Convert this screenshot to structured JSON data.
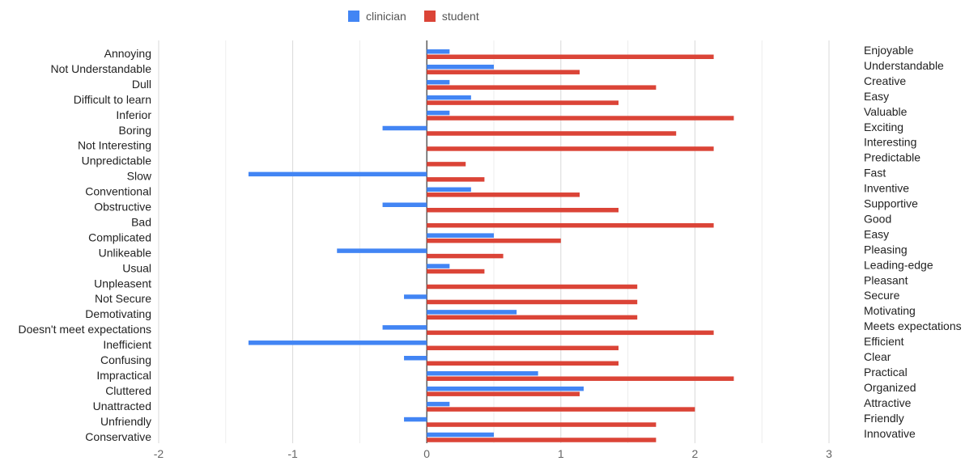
{
  "chart_data": {
    "type": "bar",
    "orientation": "horizontal",
    "grid": true,
    "legend_position": "top-center",
    "xlim": [
      -2,
      3
    ],
    "xticks": [
      "-2",
      "-1",
      "0",
      "1",
      "2",
      "3"
    ],
    "categories_left": [
      "Annoying",
      "Not Understandable",
      "Dull",
      "Difficult to learn",
      "Inferior",
      "Boring",
      "Not Interesting",
      "Unpredictable",
      "Slow",
      "Conventional",
      "Obstructive",
      "Bad",
      "Complicated",
      "Unlikeable",
      "Usual",
      "Unpleasent",
      "Not Secure",
      "Demotivating",
      "Doesn't meet expectations",
      "Inefficient",
      "Confusing",
      "Impractical",
      "Cluttered",
      "Unattracted",
      "Unfriendly",
      "Conservative"
    ],
    "categories_right": [
      "Enjoyable",
      "Understandable",
      "Creative",
      "Easy",
      "Valuable",
      "Exciting",
      "Interesting",
      "Predictable",
      "Fast",
      "Inventive",
      "Supportive",
      "Good",
      "Easy",
      "Pleasing",
      "Leading-edge",
      "Pleasant",
      "Secure",
      "Motivating",
      "Meets expectations",
      "Efficient",
      "Clear",
      "Practical",
      "Organized",
      "Attractive",
      "Friendly",
      "Innovative"
    ],
    "series": [
      {
        "name": "clinician",
        "color": "#4285f4",
        "values": [
          0.17,
          0.5,
          0.17,
          0.33,
          0.17,
          -0.33,
          0,
          0,
          -1.33,
          0.33,
          -0.33,
          0,
          0.5,
          -0.67,
          0.17,
          0,
          -0.17,
          0.67,
          -0.33,
          -1.33,
          -0.17,
          0.83,
          1.17,
          0.17,
          -0.17,
          0.5
        ]
      },
      {
        "name": "student",
        "color": "#db4437",
        "values": [
          2.14,
          1.14,
          1.71,
          1.43,
          2.29,
          1.86,
          2.14,
          0.29,
          0.43,
          1.14,
          1.43,
          2.14,
          1.0,
          0.57,
          0.43,
          1.57,
          1.57,
          1.57,
          2.14,
          1.43,
          1.43,
          2.29,
          1.14,
          2.0,
          1.71,
          1.71
        ]
      }
    ]
  }
}
